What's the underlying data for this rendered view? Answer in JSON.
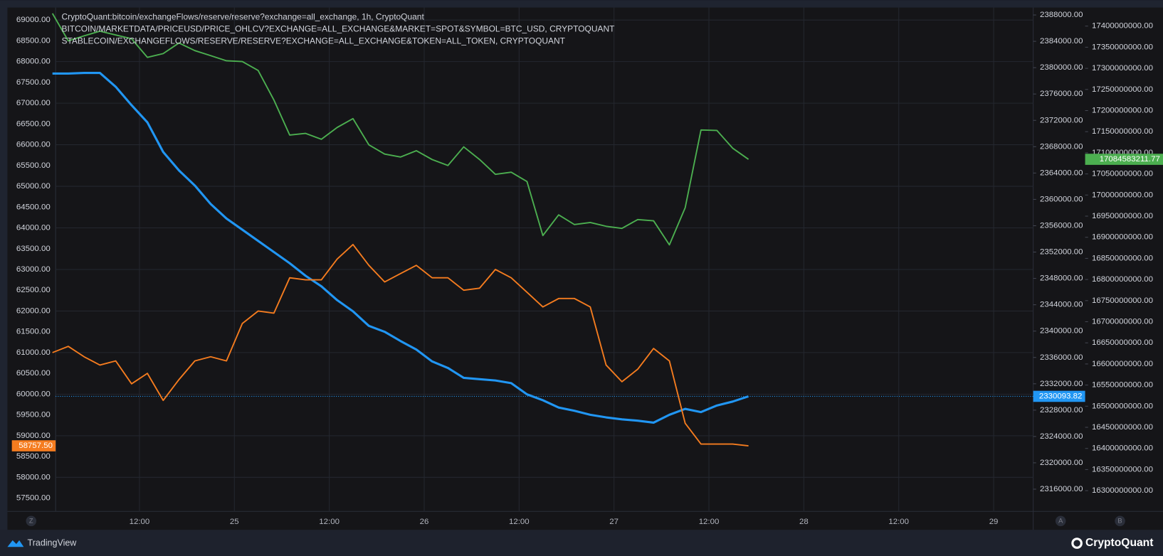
{
  "chart_data": {
    "type": "line",
    "x": [
      1,
      3,
      5,
      7,
      9,
      11,
      13,
      15,
      17,
      19,
      21,
      23,
      25,
      27,
      29,
      31,
      33,
      35,
      37,
      39,
      41,
      43,
      45,
      47,
      49,
      51,
      53,
      55,
      57,
      59,
      61,
      63,
      65,
      67,
      69,
      71,
      73,
      75,
      77,
      79,
      81,
      83,
      85,
      87,
      89
    ],
    "xlim": [
      1.4,
      125
    ],
    "xticks": [
      {
        "value": 12,
        "label": "12:00"
      },
      {
        "value": 24,
        "label": "25"
      },
      {
        "value": 36,
        "label": "12:00"
      },
      {
        "value": 48,
        "label": "26"
      },
      {
        "value": 60,
        "label": "12:00"
      },
      {
        "value": 72,
        "label": "27"
      },
      {
        "value": 84,
        "label": "12:00"
      },
      {
        "value": 96,
        "label": "28"
      },
      {
        "value": 108,
        "label": "12:00"
      },
      {
        "value": 120,
        "label": "29"
      }
    ],
    "ylim": [
      57180,
      69300
    ],
    "yticks": [
      {
        "value": 57500,
        "label": "57500.00"
      },
      {
        "value": 58000,
        "label": "58000.00"
      },
      {
        "value": 58500,
        "label": "58500.00"
      },
      {
        "value": 59000,
        "label": "59000.00"
      },
      {
        "value": 59500,
        "label": "59500.00"
      },
      {
        "value": 60000,
        "label": "60000.00"
      },
      {
        "value": 60500,
        "label": "60500.00"
      },
      {
        "value": 61000,
        "label": "61000.00"
      },
      {
        "value": 61500,
        "label": "61500.00"
      },
      {
        "value": 62000,
        "label": "62000.00"
      },
      {
        "value": 62500,
        "label": "62500.00"
      },
      {
        "value": 63000,
        "label": "63000.00"
      },
      {
        "value": 63500,
        "label": "63500.00"
      },
      {
        "value": 64000,
        "label": "64000.00"
      },
      {
        "value": 64500,
        "label": "64500.00"
      },
      {
        "value": 65000,
        "label": "65000.00"
      },
      {
        "value": 65500,
        "label": "65500.00"
      },
      {
        "value": 66000,
        "label": "66000.00"
      },
      {
        "value": 66500,
        "label": "66500.00"
      },
      {
        "value": 67000,
        "label": "67000.00"
      },
      {
        "value": 67500,
        "label": "67500.00"
      },
      {
        "value": 68000,
        "label": "68000.00"
      },
      {
        "value": 68500,
        "label": "68500.00"
      },
      {
        "value": 69000,
        "label": "69000.00"
      }
    ],
    "y2lim": [
      2312625,
      2389125
    ],
    "y2ticks": [
      {
        "value": 2316000,
        "label": "2316000.00"
      },
      {
        "value": 2320000,
        "label": "2320000.00"
      },
      {
        "value": 2324000,
        "label": "2324000.00"
      },
      {
        "value": 2328000,
        "label": "2328000.00"
      },
      {
        "value": 2332000,
        "label": "2332000.00"
      },
      {
        "value": 2336000,
        "label": "2336000.00"
      },
      {
        "value": 2340000,
        "label": "2340000.00"
      },
      {
        "value": 2344000,
        "label": "2344000.00"
      },
      {
        "value": 2348000,
        "label": "2348000.00"
      },
      {
        "value": 2352000,
        "label": "2352000.00"
      },
      {
        "value": 2356000,
        "label": "2356000.00"
      },
      {
        "value": 2360000,
        "label": "2360000.00"
      },
      {
        "value": 2364000,
        "label": "2364000.00"
      },
      {
        "value": 2368000,
        "label": "2368000.00"
      },
      {
        "value": 2372000,
        "label": "2372000.00"
      },
      {
        "value": 2376000,
        "label": "2376000.00"
      },
      {
        "value": 2380000,
        "label": "2380000.00"
      },
      {
        "value": 2384000,
        "label": "2384000.00"
      },
      {
        "value": 2388000,
        "label": "2388000.00"
      }
    ],
    "y3lim": [
      16250900000,
      17443900000
    ],
    "y3ticks": [
      {
        "value": 16300000000,
        "label": "16300000000.00"
      },
      {
        "value": 16350000000,
        "label": "16350000000.00"
      },
      {
        "value": 16400000000,
        "label": "16400000000.00"
      },
      {
        "value": 16450000000,
        "label": "16450000000.00"
      },
      {
        "value": 16500000000,
        "label": "16500000000.00"
      },
      {
        "value": 16550000000,
        "label": "16550000000.00"
      },
      {
        "value": 16600000000,
        "label": "16600000000.00"
      },
      {
        "value": 16650000000,
        "label": "16650000000.00"
      },
      {
        "value": 16700000000,
        "label": "16700000000.00"
      },
      {
        "value": 16750000000,
        "label": "16750000000.00"
      },
      {
        "value": 16800000000,
        "label": "16800000000.00"
      },
      {
        "value": 16850000000,
        "label": "16850000000.00"
      },
      {
        "value": 16900000000,
        "label": "16900000000.00"
      },
      {
        "value": 16950000000,
        "label": "16950000000.00"
      },
      {
        "value": 17000000000,
        "label": "17000000000.00"
      },
      {
        "value": 17050000000,
        "label": "17050000000.00"
      },
      {
        "value": 17100000000,
        "label": "17100000000.00"
      },
      {
        "value": 17150000000,
        "label": "17150000000.00"
      },
      {
        "value": 17200000000,
        "label": "17200000000.00"
      },
      {
        "value": 17250000000,
        "label": "17250000000.00"
      },
      {
        "value": 17300000000,
        "label": "17300000000.00"
      },
      {
        "value": 17350000000,
        "label": "17350000000.00"
      },
      {
        "value": 17400000000,
        "label": "17400000000.00"
      }
    ],
    "grid": true,
    "series": [
      {
        "name": "CryptoQuant:bitcoin/exchangeFlows/reserve/reserve?exchange=all_exchange, 1h, CryptoQuant",
        "color": "#2196f3",
        "axis": "y2",
        "last_value_label": "2330093.82",
        "values": [
          2379100,
          2379100,
          2379200,
          2379200,
          2377100,
          2374300,
          2371700,
          2367200,
          2364400,
          2362100,
          2359300,
          2357100,
          2355400,
          2353700,
          2352000,
          2350300,
          2348400,
          2346800,
          2344700,
          2343000,
          2340800,
          2339900,
          2338500,
          2337200,
          2335400,
          2334400,
          2332900,
          2332700,
          2332500,
          2332100,
          2330400,
          2329500,
          2328400,
          2327900,
          2327300,
          2326900,
          2326600,
          2326400,
          2326100,
          2327300,
          2328200,
          2327700,
          2328700,
          2329300,
          2330093.82
        ]
      },
      {
        "name": "BITCOIN/MARKETDATA/PRICEUSD/PRICE_OHLCV?EXCHANGE=ALL_EXCHANGE&MARKET=SPOT&SYMBOL=BTC_USD, CRYPTOQUANT",
        "color": "#f57c1f",
        "last_value_label": "58757.50",
        "values": [
          61000,
          61150,
          60900,
          60700,
          60800,
          60250,
          60500,
          59850,
          60350,
          60800,
          60900,
          60800,
          61700,
          62000,
          61950,
          62800,
          62750,
          62750,
          63250,
          63600,
          63100,
          62700,
          62900,
          63100,
          62800,
          62800,
          62500,
          62550,
          63000,
          62800,
          62450,
          62100,
          62300,
          62300,
          62100,
          60700,
          60300,
          60600,
          61100,
          60800,
          59300,
          58800,
          58800,
          58800,
          58757.5
        ]
      },
      {
        "name": "STABLECOIN/EXCHANGEFLOWS/RESERVE/RESERVE?EXCHANGE=ALL_EXCHANGE&TOKEN=ALL_TOKEN, CRYPTOQUANT",
        "color": "#4caf50",
        "axis": "y3",
        "last_value_label": "17084583211.77",
        "values": [
          17430000000,
          17365000000,
          17377000000,
          17388000000,
          17379000000,
          17370000000,
          17326000000,
          17335000000,
          17360000000,
          17342000000,
          17330000000,
          17318000000,
          17316000000,
          17295000000,
          17225000000,
          17142000000,
          17146000000,
          17132000000,
          17160000000,
          17181000000,
          17119000000,
          17097000000,
          17090000000,
          17105000000,
          17084000000,
          17070000000,
          17114000000,
          17084000000,
          17049000000,
          17054000000,
          17032000000,
          16904000000,
          16953000000,
          16930000000,
          16935000000,
          16926000000,
          16921000000,
          16942000000,
          16939000000,
          16882000000,
          16970000000,
          17154000000,
          17153000000,
          17111000000,
          17084583211.77
        ]
      }
    ],
    "axis_buttons": [
      "Z",
      "A",
      "B"
    ],
    "branding": [
      "TradingView",
      "CryptoQuant"
    ]
  }
}
